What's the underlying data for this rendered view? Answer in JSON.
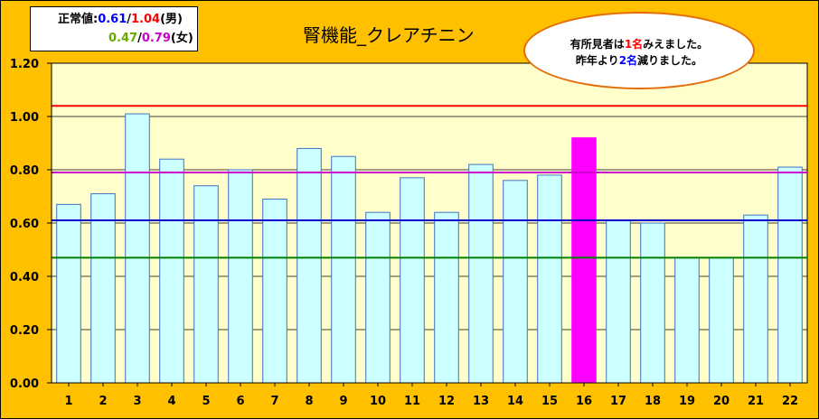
{
  "legend": {
    "label": "正常値:",
    "male_low": "0.61",
    "sep1": "/",
    "male_high": "1.04",
    "male_tag": "(男)",
    "female_low": "0.47",
    "sep2": "/",
    "female_high": "0.79",
    "female_tag": "(女)"
  },
  "note": {
    "l1_pre": "有所見者は",
    "l1_num": "1名",
    "l1_post": "みえました。",
    "l2_pre": "昨年より",
    "l2_num": "2名",
    "l2_post": "減りました。"
  },
  "chart_data": {
    "type": "bar",
    "title": "腎機能_クレアチニン",
    "categories": [
      "1",
      "2",
      "3",
      "4",
      "5",
      "6",
      "7",
      "8",
      "9",
      "10",
      "11",
      "12",
      "13",
      "14",
      "15",
      "16",
      "17",
      "18",
      "19",
      "20",
      "21",
      "22"
    ],
    "values": [
      0.67,
      0.71,
      1.01,
      0.84,
      0.74,
      0.8,
      0.69,
      0.88,
      0.85,
      0.64,
      0.77,
      0.64,
      0.82,
      0.76,
      0.78,
      0.92,
      0.61,
      0.6,
      0.47,
      0.47,
      0.63,
      0.81
    ],
    "highlight_index": 15,
    "ylim": [
      0,
      1.2
    ],
    "yticks": [
      0,
      0.2,
      0.4,
      0.6,
      0.8,
      1.0,
      1.2
    ],
    "ytick_labels": [
      "0.00",
      "0.20",
      "0.40",
      "0.60",
      "0.80",
      "1.00",
      "1.20"
    ],
    "reference_lines": [
      {
        "value": 1.04,
        "color": "#FF0000"
      },
      {
        "value": 0.79,
        "color": "#CC00CC"
      },
      {
        "value": 0.61,
        "color": "#0000CC"
      },
      {
        "value": 0.47,
        "color": "#008000"
      }
    ],
    "colors": {
      "bar": "#CCFFFF",
      "bar_edge": "#4472C4",
      "highlight": "#FF00FF",
      "plot_bg": "#FFFFCC",
      "grid": "#000000"
    },
    "grid": true,
    "legend": "none"
  }
}
